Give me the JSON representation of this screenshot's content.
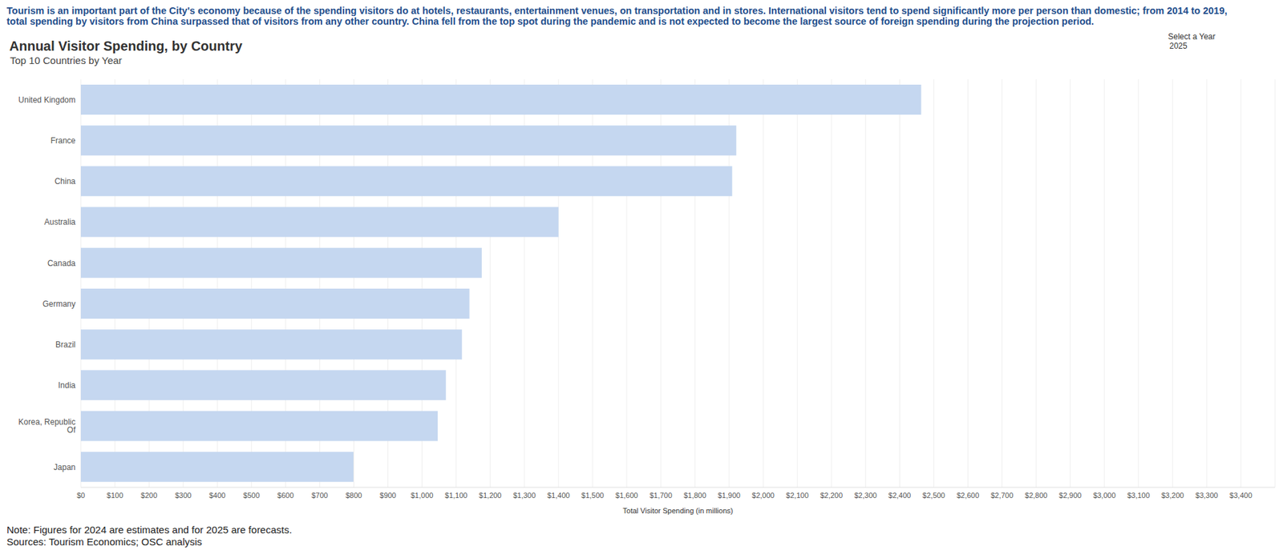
{
  "chart_data": {
    "type": "bar",
    "orientation": "horizontal",
    "intro": [
      "Tourism is an important part of the City's economy because of the spending visitors do at hotels, restaurants, entertainment venues, on transportation and in stores. International visitors tend to spend significantly more per person than domestic; from 2014 to 2019,",
      "total spending by visitors from China surpassed that of visitors from any other country. China fell from the top spot during the pandemic and is not expected to become the largest source of foreign spending during the projection period."
    ],
    "title": "Annual Visitor Spending, by Country",
    "subtitle": "Top 10 Countries by Year",
    "selector_label": "Select a Year",
    "selected_year": "2025",
    "x_label": "Total Visitor Spending (in millions)",
    "note": "Note: Figures for 2024 are estimates and for 2025 are forecasts.",
    "sources": "Sources: Tourism Economics; OSC analysis",
    "categories": [
      "United Kingdom",
      "France",
      "China",
      "Australia",
      "Canada",
      "Germany",
      "Brazil",
      "India",
      "Korea, Republic Of",
      "Japan"
    ],
    "values": [
      2463,
      1921,
      1909,
      1400,
      1175,
      1139,
      1117,
      1070,
      1046,
      799
    ],
    "color": "#c5d7f0",
    "xlim": [
      0,
      3500
    ],
    "xticks": [
      {
        "value": 0,
        "label": "$0"
      },
      {
        "value": 100,
        "label": "$100"
      },
      {
        "value": 200,
        "label": "$200"
      },
      {
        "value": 300,
        "label": "$300"
      },
      {
        "value": 400,
        "label": "$400"
      },
      {
        "value": 500,
        "label": "$500"
      },
      {
        "value": 600,
        "label": "$600"
      },
      {
        "value": 700,
        "label": "$700"
      },
      {
        "value": 800,
        "label": "$800"
      },
      {
        "value": 900,
        "label": "$900"
      },
      {
        "value": 1000,
        "label": "$1,000"
      },
      {
        "value": 1100,
        "label": "$1,100"
      },
      {
        "value": 1200,
        "label": "$1,200"
      },
      {
        "value": 1300,
        "label": "$1,300"
      },
      {
        "value": 1400,
        "label": "$1,400"
      },
      {
        "value": 1500,
        "label": "$1,500"
      },
      {
        "value": 1600,
        "label": "$1,600"
      },
      {
        "value": 1700,
        "label": "$1,700"
      },
      {
        "value": 1800,
        "label": "$1,800"
      },
      {
        "value": 1900,
        "label": "$1,900"
      },
      {
        "value": 2000,
        "label": "$2,000"
      },
      {
        "value": 2100,
        "label": "$2,100"
      },
      {
        "value": 2200,
        "label": "$2,200"
      },
      {
        "value": 2300,
        "label": "$2,300"
      },
      {
        "value": 2400,
        "label": "$2,400"
      },
      {
        "value": 2500,
        "label": "$2,500"
      },
      {
        "value": 2600,
        "label": "$2,600"
      },
      {
        "value": 2700,
        "label": "$2,700"
      },
      {
        "value": 2800,
        "label": "$2,800"
      },
      {
        "value": 2900,
        "label": "$2,900"
      },
      {
        "value": 3000,
        "label": "$3,000"
      },
      {
        "value": 3100,
        "label": "$3,100"
      },
      {
        "value": 3200,
        "label": "$3,200"
      },
      {
        "value": 3300,
        "label": "$3,300"
      },
      {
        "value": 3400,
        "label": "$3,400"
      }
    ],
    "grid": true
  }
}
